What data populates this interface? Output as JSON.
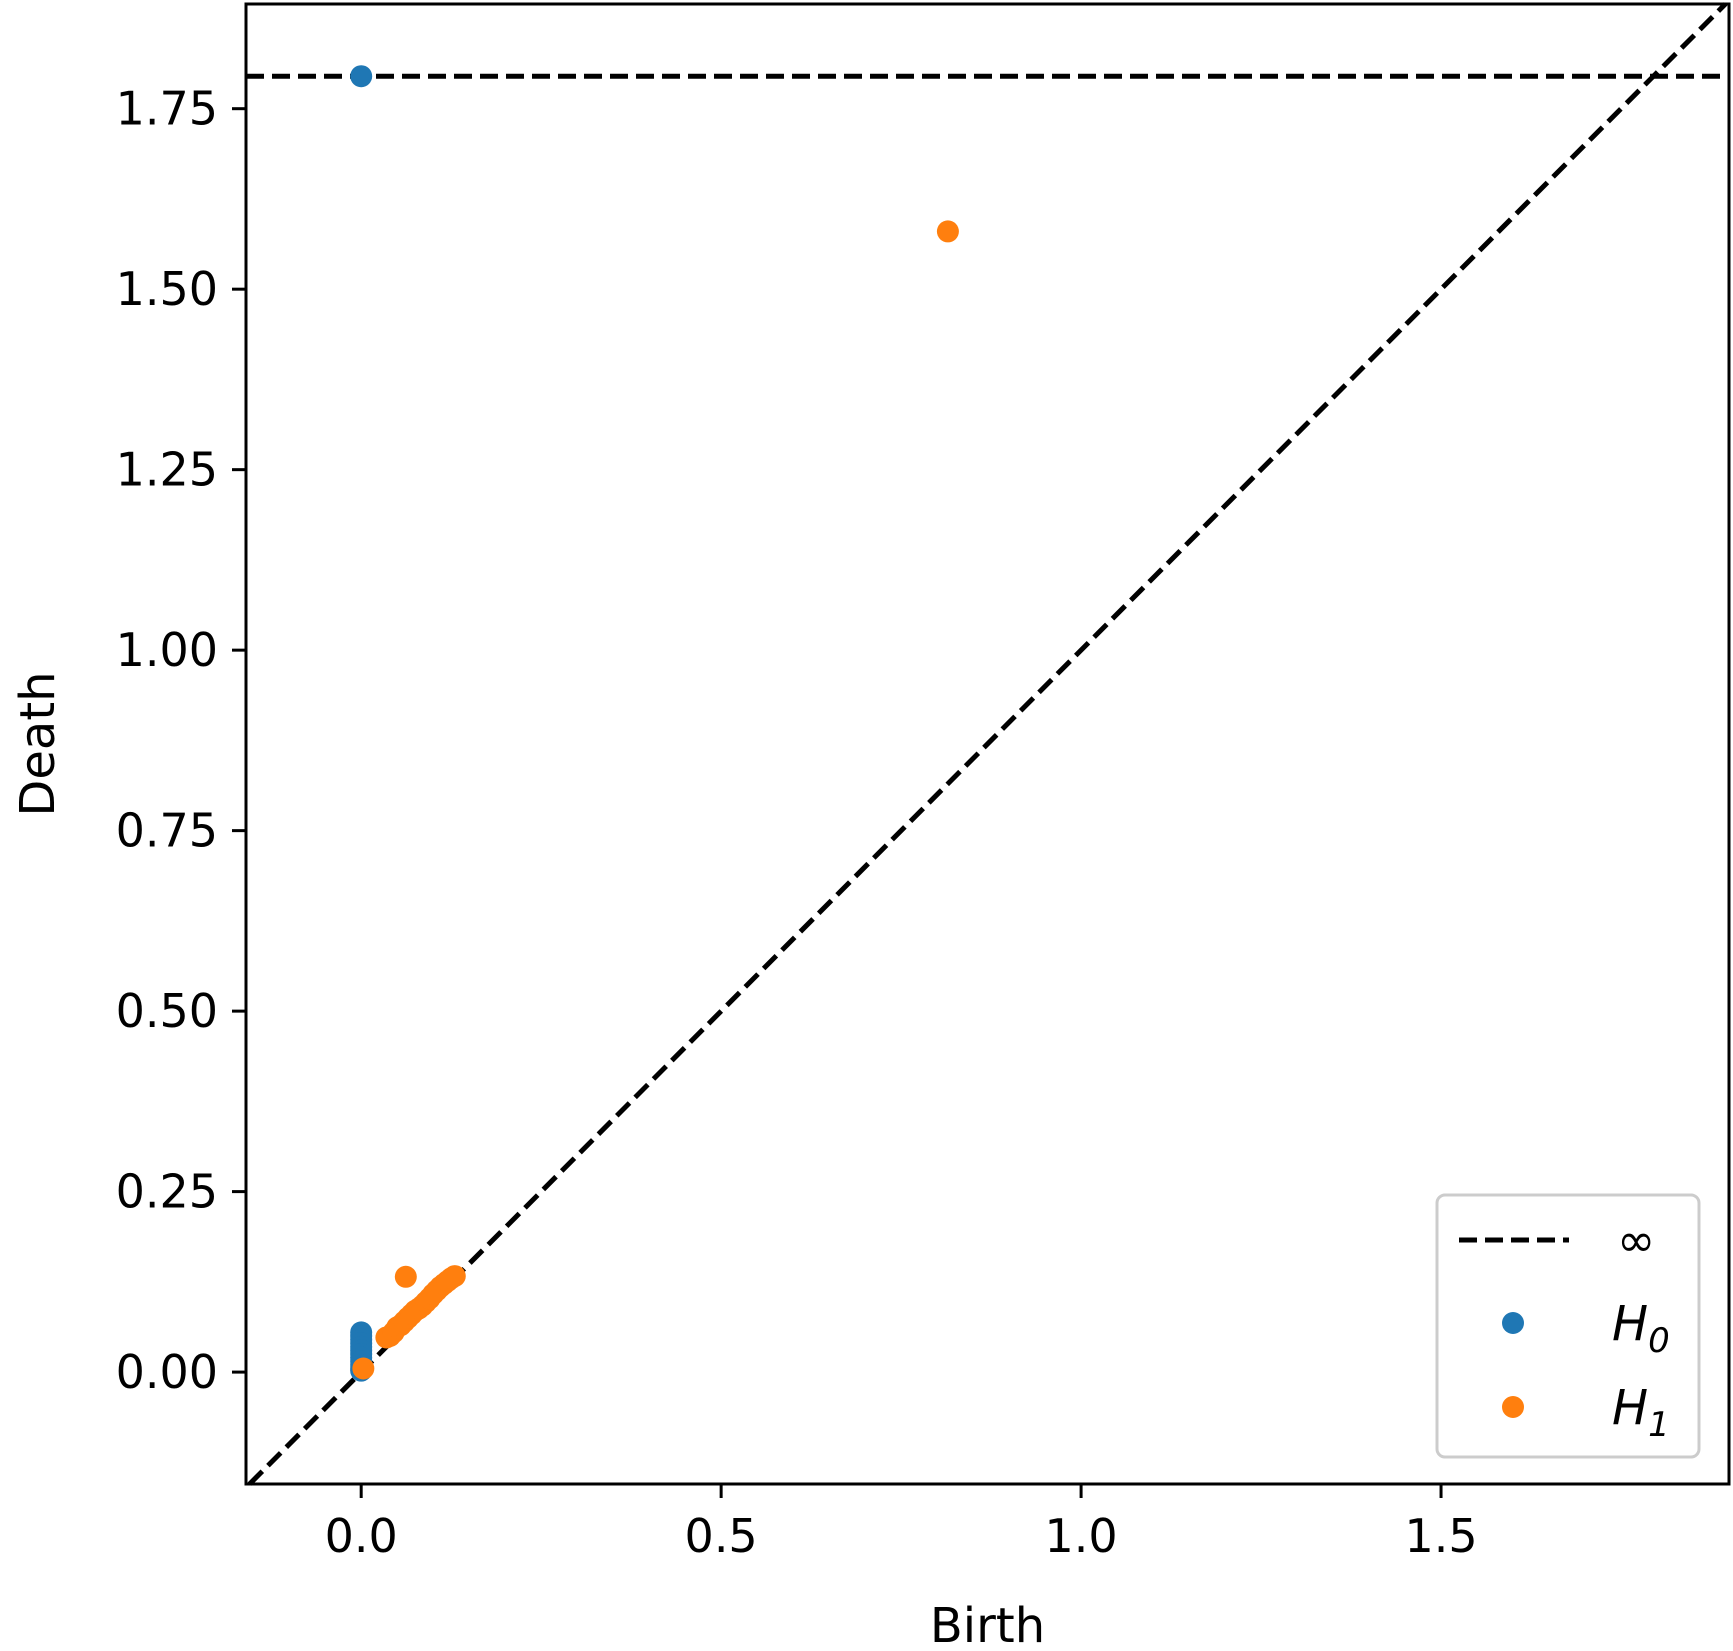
{
  "chart_data": {
    "type": "scatter",
    "xlabel": "Birth",
    "ylabel": "Death",
    "xlim": [
      -0.16,
      1.9
    ],
    "ylim": [
      -0.155,
      1.895
    ],
    "xticks": [
      0.0,
      0.5,
      1.0,
      1.5
    ],
    "xtick_labels": [
      "0.0",
      "0.5",
      "1.0",
      "1.5"
    ],
    "yticks": [
      0.0,
      0.25,
      0.5,
      0.75,
      1.0,
      1.25,
      1.5,
      1.75
    ],
    "ytick_labels": [
      "0.00",
      "0.25",
      "0.50",
      "0.75",
      "1.00",
      "1.25",
      "1.50",
      "1.75"
    ],
    "grid": false,
    "legend_position": "lower-right",
    "reference_lines": {
      "diagonal": {
        "style": "dashed",
        "color": "#000000"
      },
      "infinity": {
        "y": 1.795,
        "style": "dashed",
        "color": "#000000",
        "label": "∞"
      }
    },
    "series": [
      {
        "name": "H",
        "subscript": "0",
        "color": "#1f77b4",
        "points": [
          [
            0.0,
            1.795
          ],
          [
            0.0,
            0.055
          ],
          [
            0.0,
            0.05
          ],
          [
            0.0,
            0.045
          ],
          [
            0.0,
            0.04
          ],
          [
            0.0,
            0.035
          ],
          [
            0.0,
            0.03
          ],
          [
            0.0,
            0.025
          ],
          [
            0.0,
            0.02
          ],
          [
            0.0,
            0.015
          ],
          [
            0.0,
            0.01
          ],
          [
            0.0,
            0.005
          ],
          [
            0.0,
            0.002
          ]
        ]
      },
      {
        "name": "H",
        "subscript": "1",
        "color": "#ff7f0e",
        "points": [
          [
            0.815,
            1.58
          ],
          [
            0.062,
            0.132
          ],
          [
            0.003,
            0.005
          ],
          [
            0.035,
            0.048
          ],
          [
            0.04,
            0.05
          ],
          [
            0.045,
            0.055
          ],
          [
            0.05,
            0.062
          ],
          [
            0.055,
            0.065
          ],
          [
            0.06,
            0.07
          ],
          [
            0.065,
            0.075
          ],
          [
            0.07,
            0.08
          ],
          [
            0.075,
            0.085
          ],
          [
            0.08,
            0.088
          ],
          [
            0.085,
            0.092
          ],
          [
            0.09,
            0.097
          ],
          [
            0.095,
            0.102
          ],
          [
            0.1,
            0.108
          ],
          [
            0.105,
            0.113
          ],
          [
            0.11,
            0.118
          ],
          [
            0.115,
            0.122
          ],
          [
            0.12,
            0.126
          ],
          [
            0.125,
            0.13
          ],
          [
            0.13,
            0.133
          ]
        ]
      }
    ]
  }
}
